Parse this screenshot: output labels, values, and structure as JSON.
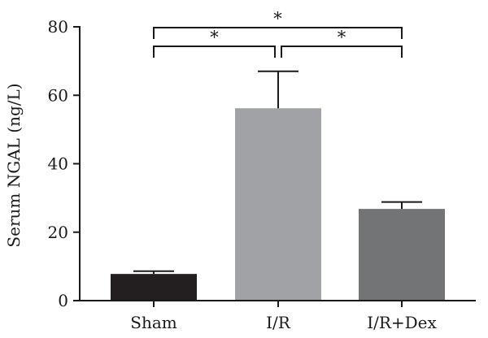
{
  "chart_data": {
    "type": "bar",
    "categories": [
      "Sham",
      "I/R",
      "I/R+Dex"
    ],
    "values": [
      7.8,
      56.2,
      26.8
    ],
    "error_upper": [
      8.6,
      67.0,
      28.8
    ],
    "colors": [
      "#231f20",
      "#a0a2a5",
      "#727476"
    ],
    "ylabel": "Serum NGAL (ng/L)",
    "xlabel": "",
    "ylim": [
      0,
      80
    ],
    "yticks": [
      0,
      20,
      40,
      60,
      80
    ],
    "grid": false,
    "significance": [
      {
        "from": 0,
        "to": 1,
        "label": "*",
        "level": 1
      },
      {
        "from": 1,
        "to": 2,
        "label": "*",
        "level": 1
      },
      {
        "from": 0,
        "to": 2,
        "label": "*",
        "level": 2
      }
    ]
  }
}
